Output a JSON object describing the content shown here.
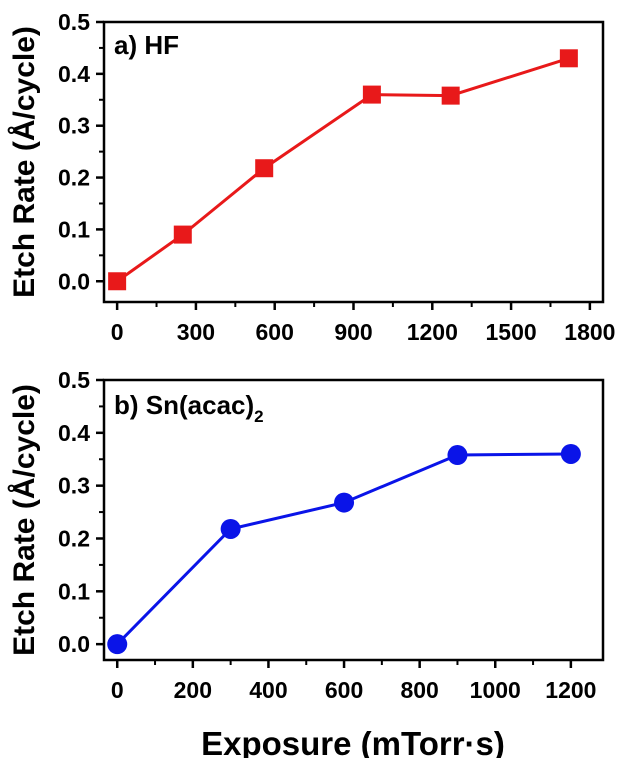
{
  "chart_data": [
    {
      "type": "line",
      "panel_label": "a) HF",
      "panel_label_sub": "",
      "marker": "square",
      "color": "#e8191a",
      "xlabel": "",
      "ylabel": "Etch Rate (Å/cycle)",
      "xlim": [
        -50,
        1850
      ],
      "ylim": [
        -0.04,
        0.5
      ],
      "xticks": [
        0,
        300,
        600,
        900,
        1200,
        1500,
        1800
      ],
      "xtick_labels": [
        "0",
        "300",
        "600",
        "900",
        "1200",
        "1500",
        "1800"
      ],
      "yticks": [
        0.0,
        0.1,
        0.2,
        0.3,
        0.4,
        0.5
      ],
      "ytick_labels": [
        "0.0",
        "0.1",
        "0.2",
        "0.3",
        "0.4",
        "0.5"
      ],
      "grid": false,
      "series": [
        {
          "x": [
            0,
            250,
            560,
            970,
            1270,
            1720
          ],
          "y": [
            0.0,
            0.09,
            0.218,
            0.36,
            0.358,
            0.43
          ]
        }
      ]
    },
    {
      "type": "line",
      "panel_label": "b) Sn(acac)",
      "panel_label_sub": "2",
      "marker": "circle",
      "color": "#0a14e8",
      "xlabel": "Exposure (mTorr·s)",
      "ylabel": "Etch Rate (Å/cycle)",
      "xlim": [
        -35,
        1285
      ],
      "ylim": [
        -0.03,
        0.5
      ],
      "xticks": [
        0,
        200,
        400,
        600,
        800,
        1000,
        1200
      ],
      "xtick_labels": [
        "0",
        "200",
        "400",
        "600",
        "800",
        "1000",
        "1200"
      ],
      "yticks": [
        0.0,
        0.1,
        0.2,
        0.3,
        0.4,
        0.5
      ],
      "ytick_labels": [
        "0.0",
        "0.1",
        "0.2",
        "0.3",
        "0.4",
        "0.5"
      ],
      "grid": false,
      "series": [
        {
          "x": [
            0,
            300,
            600,
            900,
            1200
          ],
          "y": [
            0.0,
            0.218,
            0.268,
            0.358,
            0.36
          ]
        }
      ]
    }
  ]
}
